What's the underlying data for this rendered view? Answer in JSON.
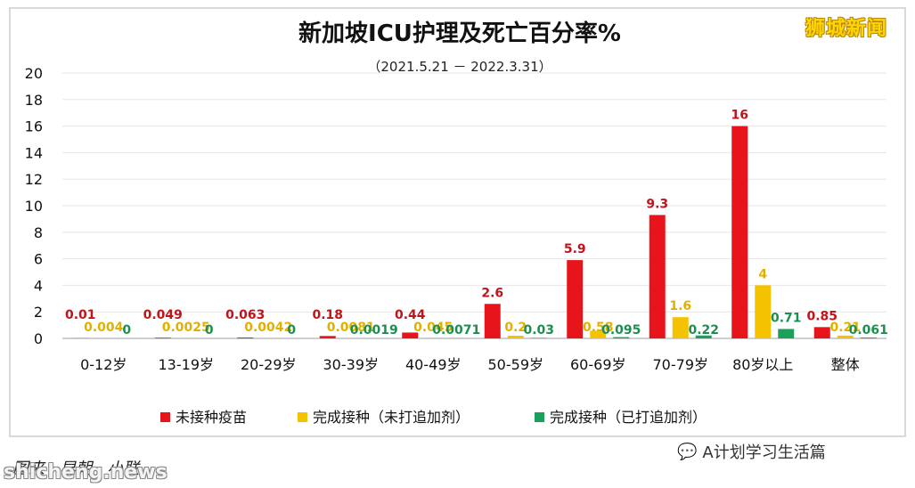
{
  "brand": "狮城新闻",
  "footer": {
    "source": "图来 · 早朝 · 小联",
    "account": "A计划学习生活篇",
    "watermark": "shicheng.news"
  },
  "chart_data": {
    "type": "bar",
    "title": "新加坡ICU护理及死亡百分率%",
    "subtitle": "（2021.5.21 － 2022.3.31）",
    "xlabel": "",
    "ylabel": "",
    "ylim": [
      0,
      20
    ],
    "yticks": [
      "0",
      "2",
      "4",
      "6",
      "8",
      "10",
      "12",
      "14",
      "16",
      "18",
      "20"
    ],
    "grid": true,
    "legend_position": "bottom",
    "categories": [
      "0-12岁",
      "13-19岁",
      "20-29岁",
      "30-39岁",
      "40-49岁",
      "50-59岁",
      "60-69岁",
      "70-79岁",
      "80岁以上",
      "整体"
    ],
    "series": [
      {
        "name": "未接种疫苗",
        "color": "#e8141b",
        "values": [
          0.01,
          0.049,
          0.063,
          0.18,
          0.44,
          2.6,
          5.9,
          9.3,
          16,
          0.85
        ],
        "labels": [
          "0.01",
          "0.049",
          "0.063",
          "0.18",
          "0.44",
          "2.6",
          "5.9",
          "9.3",
          "16",
          "0.85"
        ]
      },
      {
        "name": "完成接种（未打追加剂）",
        "color": "#f5c200",
        "values": [
          0.004,
          0.0025,
          0.0042,
          0.0081,
          0.045,
          0.2,
          0.58,
          1.6,
          4,
          0.21
        ],
        "labels": [
          "0.004",
          "0.0025",
          "0.0042",
          "0.0081",
          "0.045",
          "0.2",
          "0.58",
          "1.6",
          "4",
          "0.21"
        ]
      },
      {
        "name": "完成接种（已打追加剂）",
        "color": "#1aa05a",
        "values": [
          0,
          0,
          0,
          0.0019,
          0.0071,
          0.03,
          0.095,
          0.22,
          0.71,
          0.061
        ],
        "labels": [
          "0",
          "0",
          "0",
          "0.0019",
          "0.0071",
          "0.03",
          "0.095",
          "0.22",
          "0.71",
          "0.061"
        ]
      }
    ]
  }
}
